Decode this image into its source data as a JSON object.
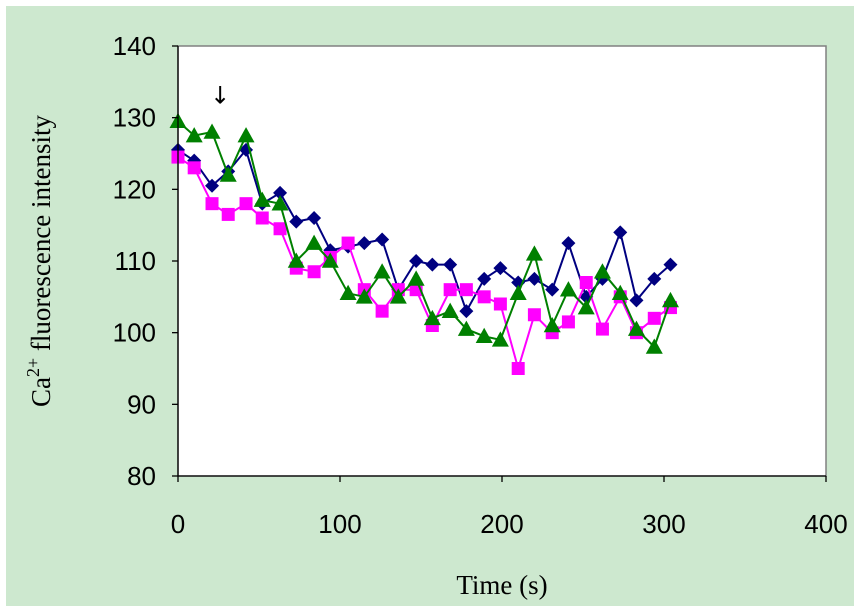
{
  "chart_data": {
    "type": "line",
    "xlabel": "Time (s)",
    "ylabel_main": "Ca",
    "ylabel_sup": "2+",
    "ylabel_rest": " fluorescence intensity",
    "xlim": [
      0,
      400
    ],
    "ylim": [
      80,
      140
    ],
    "x_ticks": [
      0,
      100,
      200,
      300,
      400
    ],
    "y_ticks": [
      80,
      90,
      100,
      110,
      120,
      130,
      140
    ],
    "grid": false,
    "annotation": {
      "text": "↓",
      "x": 26,
      "y": 132
    },
    "series": [
      {
        "marker": "diamond",
        "color": "#000080",
        "x": [
          0,
          10,
          21,
          31,
          42,
          52,
          63,
          73,
          84,
          94,
          105,
          115,
          126,
          136,
          147,
          157,
          168,
          178,
          189,
          199,
          210,
          220,
          231,
          241,
          252,
          262,
          273,
          283,
          294,
          304
        ],
        "y": [
          125.5,
          124,
          120.5,
          122.5,
          125.5,
          118,
          119.5,
          115.5,
          116,
          111.5,
          112,
          112.5,
          113,
          106,
          110,
          109.5,
          109.5,
          103,
          107.5,
          109,
          107,
          107.5,
          106,
          112.5,
          105,
          107.5,
          114,
          104.5,
          107.5,
          109.5
        ]
      },
      {
        "marker": "square",
        "color": "#ff00ff",
        "x": [
          0,
          10,
          21,
          31,
          42,
          52,
          63,
          73,
          84,
          94,
          105,
          115,
          126,
          136,
          147,
          157,
          168,
          178,
          189,
          199,
          210,
          220,
          231,
          241,
          252,
          262,
          273,
          283,
          294,
          304
        ],
        "y": [
          124.5,
          123,
          118,
          116.5,
          118,
          116,
          114.5,
          109,
          108.5,
          110.5,
          112.5,
          106,
          103,
          106,
          106,
          101,
          106,
          106,
          105,
          104,
          95,
          102.5,
          100,
          101.5,
          107,
          100.5,
          105,
          100,
          102,
          103.5
        ]
      },
      {
        "marker": "triangle",
        "color": "#008000",
        "x": [
          0,
          10,
          21,
          31,
          42,
          52,
          63,
          73,
          84,
          94,
          105,
          115,
          126,
          136,
          147,
          157,
          168,
          178,
          189,
          199,
          210,
          220,
          231,
          241,
          252,
          262,
          273,
          283,
          294,
          304
        ],
        "y": [
          129.5,
          127.5,
          128,
          122,
          127.5,
          118.5,
          118,
          110,
          112.5,
          110,
          105.5,
          105,
          108.5,
          105,
          107.5,
          102,
          103,
          100.5,
          99.5,
          99,
          105.5,
          111,
          101,
          106,
          103.5,
          108.5,
          105.5,
          100.5,
          98,
          104.5
        ]
      }
    ]
  }
}
